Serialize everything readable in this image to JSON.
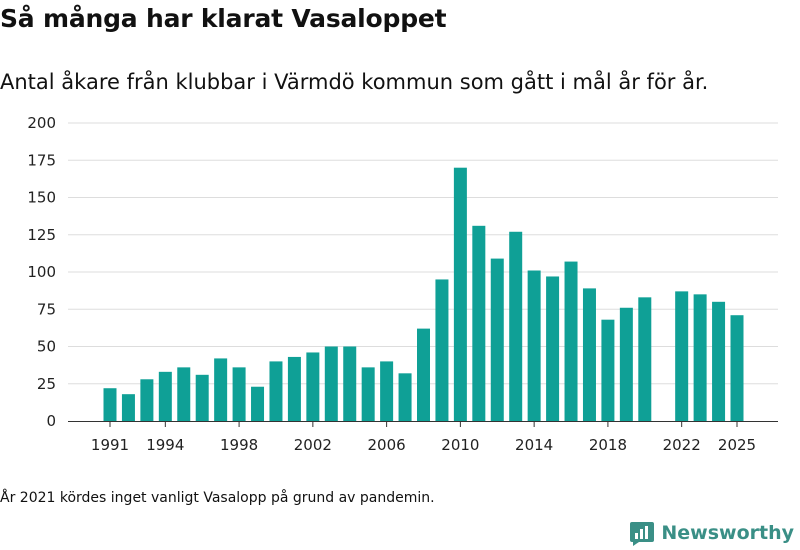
{
  "title": "Så många har klarat Vasaloppet",
  "subtitle": "Antal åkare från klubbar i Värmdö kommun som gått i mål år för år.",
  "note": "År 2021 kördes inget vanligt Vasalopp på grund av pandemin.",
  "brand": {
    "name": "Newsworthy",
    "icon": "newsworthy-logo-icon"
  },
  "colors": {
    "bar": "#0fa096",
    "grid": "#dddddd",
    "axis": "#333333",
    "brand": "#3a8f86"
  },
  "chart_data": {
    "type": "bar",
    "title": "",
    "xlabel": "",
    "ylabel": "",
    "ylim": [
      0,
      200
    ],
    "yticks": [
      0,
      25,
      50,
      75,
      100,
      125,
      150,
      175,
      200
    ],
    "xtick_labels": [
      "1991",
      "1994",
      "1998",
      "2002",
      "2006",
      "2010",
      "2014",
      "2018",
      "2022",
      "2025"
    ],
    "grid": true,
    "categories": [
      1991,
      1992,
      1993,
      1994,
      1995,
      1996,
      1997,
      1998,
      1999,
      2000,
      2001,
      2002,
      2003,
      2004,
      2005,
      2006,
      2007,
      2008,
      2009,
      2010,
      2011,
      2012,
      2013,
      2014,
      2015,
      2016,
      2017,
      2018,
      2019,
      2020,
      2022,
      2023,
      2024,
      2025
    ],
    "values": [
      22,
      18,
      28,
      33,
      36,
      31,
      42,
      36,
      23,
      40,
      43,
      46,
      50,
      50,
      36,
      40,
      32,
      62,
      95,
      170,
      131,
      109,
      127,
      101,
      97,
      107,
      89,
      68,
      76,
      83,
      87,
      85,
      80,
      71
    ]
  }
}
